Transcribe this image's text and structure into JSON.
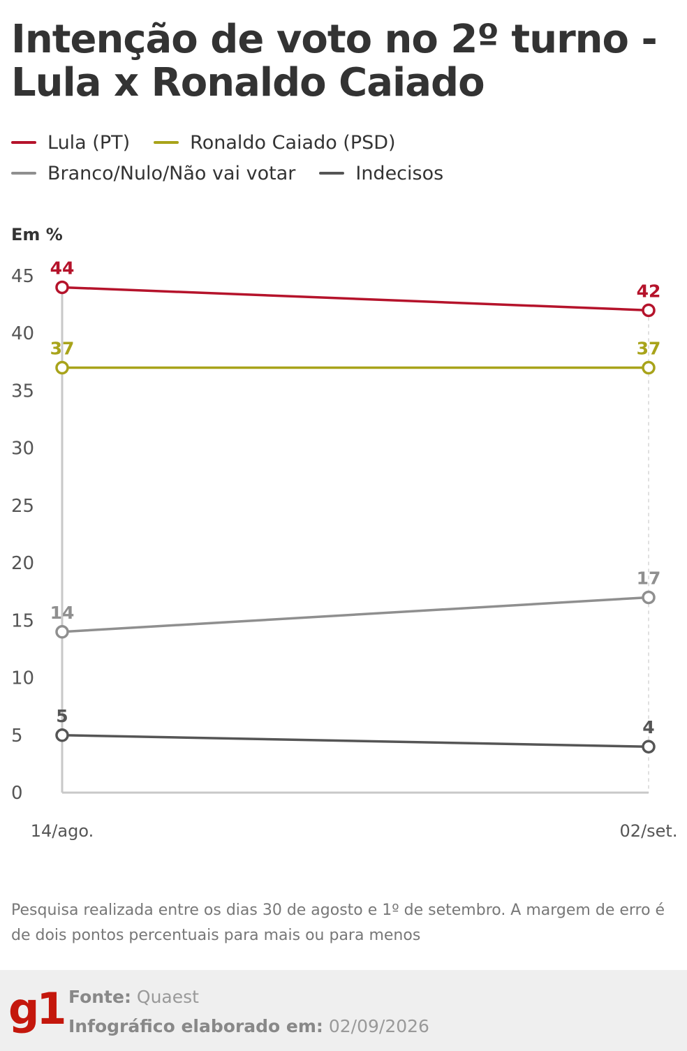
{
  "header": {
    "title_line1": "Intenção de voto no 2º turno -",
    "title_line2": "Lula x Ronaldo Caiado"
  },
  "legend": [
    {
      "label": "Lula (PT)",
      "color": "#b5132b"
    },
    {
      "label": "Ronaldo Caiado (PSD)",
      "color": "#a8a31a"
    },
    {
      "label": "Branco/Nulo/Não vai votar",
      "color": "#8f8f8f"
    },
    {
      "label": "Indecisos",
      "color": "#555555"
    }
  ],
  "chart_data": {
    "type": "line",
    "ylabel": "Em %",
    "categories": [
      "14/ago.",
      "02/set."
    ],
    "ylim": [
      0,
      45
    ],
    "yticks": [
      0,
      5,
      10,
      15,
      20,
      25,
      30,
      35,
      40,
      45
    ],
    "series": [
      {
        "name": "Lula (PT)",
        "color": "#b5132b",
        "values": [
          44,
          42
        ]
      },
      {
        "name": "Ronaldo Caiado (PSD)",
        "color": "#a8a31a",
        "values": [
          37,
          37
        ]
      },
      {
        "name": "Branco/Nulo/Não vai votar",
        "color": "#8f8f8f",
        "values": [
          14,
          17
        ]
      },
      {
        "name": "Indecisos",
        "color": "#555555",
        "values": [
          5,
          4
        ]
      }
    ]
  },
  "note": "Pesquisa realizada entre os dias 30 de agosto e 1º de setembro. A margem de erro é de dois pontos percentuais para mais ou para menos",
  "footer": {
    "logo": "g1",
    "source_label": "Fonte:",
    "source_value": "Quaest",
    "date_label": "Infográfico elaborado em:",
    "date_value": "02/09/2026"
  }
}
